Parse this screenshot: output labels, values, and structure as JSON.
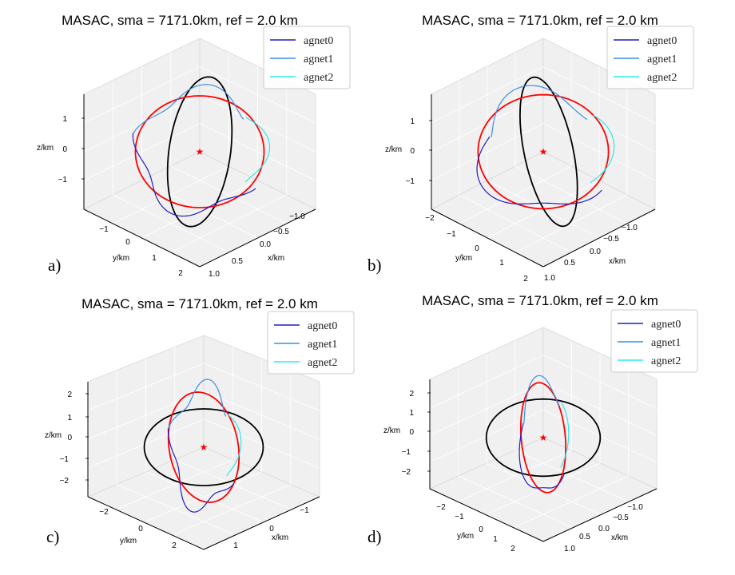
{
  "figure": {
    "panels": [
      {
        "id": "a",
        "tag": "a)"
      },
      {
        "id": "b",
        "tag": "b)"
      },
      {
        "id": "c",
        "tag": "c)"
      },
      {
        "id": "d",
        "tag": "d)"
      }
    ]
  },
  "chart_data": [
    {
      "type": "line",
      "title": "MASAC, sma = 7171.0km, ref = 2.0 km",
      "xlabel": "x/km",
      "ylabel": "y/km",
      "zlabel": "z/km",
      "xticks": [
        "−1.0",
        "−0.5",
        "0.0",
        "0.5",
        "1.0"
      ],
      "yticks": [
        "−1",
        "0",
        "1",
        "2"
      ],
      "zticks": [
        "1",
        "0",
        "−1"
      ],
      "legend": {
        "placement": "top-right",
        "entries": [
          "agnet0",
          "agnet1",
          "agnet2"
        ]
      },
      "legend_colors": [
        "#1f1fbf",
        "#3a8fe6",
        "#2ee8e8"
      ],
      "reference_orbits": [
        {
          "color": "#000000",
          "cx": 0,
          "cy": 0,
          "rx": 0.55,
          "ry": 1.35,
          "rot": 8
        },
        {
          "color": "#ff0000",
          "cx": 0,
          "cy": 0,
          "rx": 1.15,
          "ry": 1.0,
          "rot": 0
        }
      ],
      "center_marker": {
        "color": "#ff0000",
        "x": 0,
        "y": 0,
        "z": 0
      },
      "trajectory": {
        "rx": 1.12,
        "ry": 1.08,
        "wobble": 0.12,
        "freq": 4
      }
    },
    {
      "type": "line",
      "title": "MASAC, sma = 7171.0km, ref = 2.0 km",
      "xlabel": "x/km",
      "ylabel": "y/km",
      "zlabel": "z/km",
      "xticks": [
        "−1.0",
        "−0.5",
        "0.0",
        "0.5",
        "1.0"
      ],
      "yticks": [
        "−2",
        "−1",
        "0",
        "1",
        "2"
      ],
      "zticks": [
        "1",
        "0",
        "−1"
      ],
      "legend": {
        "placement": "top-right",
        "entries": [
          "agnet0",
          "agnet1",
          "agnet2"
        ]
      },
      "legend_colors": [
        "#1f1fbf",
        "#3a8fe6",
        "#2ee8e8"
      ],
      "reference_orbits": [
        {
          "color": "#000000",
          "cx": 0.1,
          "cy": 0,
          "rx": 0.45,
          "ry": 1.4,
          "rot": -12
        },
        {
          "color": "#ff0000",
          "cx": 0,
          "cy": 0,
          "rx": 1.2,
          "ry": 1.05,
          "rot": 0
        }
      ],
      "center_marker": {
        "color": "#ff0000",
        "x": 0,
        "y": 0,
        "z": 0
      },
      "trajectory": {
        "rx": 1.15,
        "ry": 1.1,
        "wobble": 0.14,
        "freq": 3
      }
    },
    {
      "type": "line",
      "title": "MASAC, sma = 7171.0km, ref = 2.0 km",
      "xlabel": "x/km",
      "ylabel": "y/km",
      "zlabel": "z/km",
      "xticks": [
        "−1",
        "0",
        "1"
      ],
      "yticks": [
        "−2",
        "0",
        "2"
      ],
      "zticks": [
        "2",
        "1",
        "0",
        "−1",
        "−2"
      ],
      "legend": {
        "placement": "top-right",
        "entries": [
          "agnet0",
          "agnet1",
          "agnet2"
        ]
      },
      "legend_colors": [
        "#1f1fbf",
        "#3a8fe6",
        "#2ee8e8"
      ],
      "reference_orbits": [
        {
          "color": "#000000",
          "cx": 0,
          "cy": 0,
          "rx": 1.55,
          "ry": 1.0,
          "rot": 0
        },
        {
          "color": "#ff0000",
          "cx": 0,
          "cy": 0,
          "rx": 0.9,
          "ry": 1.45,
          "rot": -10
        }
      ],
      "center_marker": {
        "color": "#ff0000",
        "x": 0,
        "y": 0,
        "z": 0
      },
      "trajectory": {
        "rx": 0.85,
        "ry": 1.55,
        "wobble": 0.15,
        "freq": 4
      }
    },
    {
      "type": "line",
      "title": "MASAC, sma = 7171.0km, ref = 2.0 km",
      "xlabel": "x/km",
      "ylabel": "y/km",
      "zlabel": "z/km",
      "xticks": [
        "−1.0",
        "−0.5",
        "0.0",
        "0.5",
        "1.0"
      ],
      "yticks": [
        "−2",
        "−1",
        "0",
        "1",
        "2"
      ],
      "zticks": [
        "2",
        "1",
        "0",
        "−1",
        "−2"
      ],
      "legend": {
        "placement": "top-right",
        "entries": [
          "agnet0",
          "agnet1",
          "agnet2"
        ]
      },
      "legend_colors": [
        "#1f1fbf",
        "#3a8fe6",
        "#2ee8e8"
      ],
      "reference_orbits": [
        {
          "color": "#000000",
          "cx": 0,
          "cy": 0,
          "rx": 1.55,
          "ry": 1.05,
          "rot": 0
        },
        {
          "color": "#ff0000",
          "cx": 0,
          "cy": 0,
          "rx": 0.6,
          "ry": 1.5,
          "rot": -5
        }
      ],
      "center_marker": {
        "color": "#ff0000",
        "x": 0,
        "y": 0,
        "z": 0
      },
      "trajectory": {
        "rx": 0.62,
        "ry": 1.55,
        "wobble": 0.12,
        "freq": 3
      }
    }
  ]
}
